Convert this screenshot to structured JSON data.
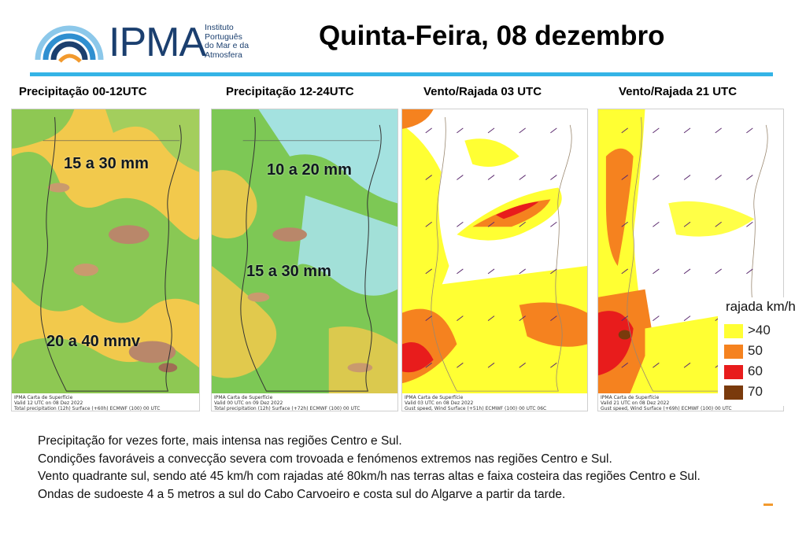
{
  "header": {
    "logo_word": "IPMA",
    "logo_subtitle_lines": [
      "Instituto",
      "Português",
      "do Mar e da",
      "Atmosfera"
    ],
    "title": "Quinta-Feira, 08 dezembro",
    "colors": {
      "logo_blue": "#1b3f6f",
      "title_bar": "#34b4e6",
      "logo_orange": "#f29a2e"
    }
  },
  "panels": [
    {
      "title": "Precipitação 00-12UTC",
      "labels": [
        "15 a 30 mm",
        "20 a 40 mmv"
      ],
      "footnote_lines": [
        "IPMA Carta de Superfície",
        "Valid 12 UTC on 08 Dez 2022",
        "Total precipitation (12h) Surface (+60h) ECMWF (100) 00 UTC"
      ]
    },
    {
      "title": "Precipitação 12-24UTC",
      "labels": [
        "10 a 20 mm",
        "15 a 30 mm"
      ],
      "footnote_lines": [
        "IPMA Carta de Superfície",
        "Valid 00 UTC on 09 Dez 2022",
        "Total precipitation (12h) Surface (+72h) ECMWF (100) 00 UTC"
      ]
    },
    {
      "title": "Vento/Rajada 03 UTC",
      "labels": [],
      "footnote_lines": [
        "IPMA Carta de Superfície",
        "Valid 03 UTC on 08 Dez 2022",
        "Gust speed, Wind Surface (+51h) ECMWF (100) 00 UTC 06C"
      ]
    },
    {
      "title": "Vento/Rajada 21 UTC",
      "labels": [],
      "footnote_lines": [
        "IPMA Carta de Superfície",
        "Valid 21 UTC on 08 Dez 2022",
        "Gust speed, Wind Surface (+69h) ECMWF (100) 00 UTC"
      ]
    }
  ],
  "legend": {
    "title": "rajada km/h",
    "items": [
      {
        "label": ">40",
        "color": "#ffff33"
      },
      {
        "label": "50",
        "color": "#f5821f"
      },
      {
        "label": "60",
        "color": "#e81c1c"
      },
      {
        "label": "70",
        "color": "#7a3a0c"
      }
    ]
  },
  "bulletin": [
    "Precipitação for vezes forte, mais intensa nas regiões Centro e Sul.",
    "Condições favoráveis a convecção severa com trovoada e fenómenos extremos nas regiões Centro e Sul.",
    "Vento quadrante sul, sendo até 45 km/h com rajadas até 80km/h nas terras altas e faixa costeira das regiões Centro e Sul.",
    "Ondas de sudoeste 4 a 5 metros a sul do Cabo Carvoeiro e costa sul do Algarve a partir da tarde."
  ]
}
